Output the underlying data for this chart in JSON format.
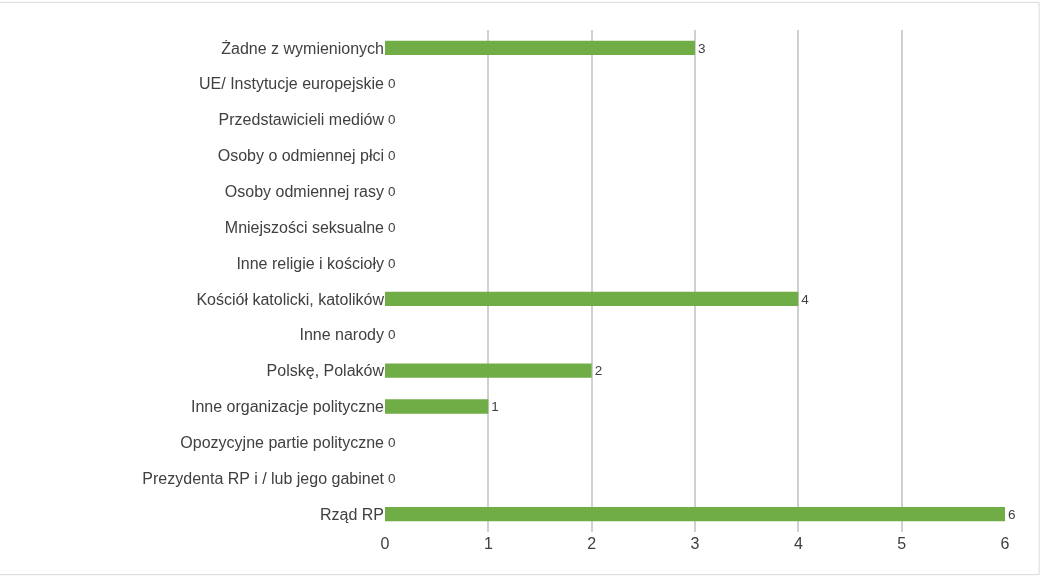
{
  "chart_data": {
    "type": "bar",
    "orientation": "horizontal",
    "categories": [
      "Żadne z wymienionych",
      "UE/ Instytucje europejskie",
      "Przedstawicieli mediów",
      "Osoby o odmiennej płci",
      "Osoby odmiennej rasy",
      "Mniejszości seksualne",
      "Inne religie i kościoły",
      "Kościół katolicki, katolików",
      "Inne narody",
      "Polskę, Polaków",
      "Inne organizacje polityczne",
      "Opozycyjne partie polityczne",
      "Prezydenta RP i / lub jego gabinet",
      "Rząd RP"
    ],
    "values": [
      3,
      0,
      0,
      0,
      0,
      0,
      0,
      4,
      0,
      2,
      1,
      0,
      0,
      6
    ],
    "color": "#70ad47",
    "xlim": [
      0,
      6
    ],
    "xticks": [
      0,
      1,
      2,
      3,
      4,
      5,
      6
    ],
    "grid": "x",
    "data_labels": true
  }
}
